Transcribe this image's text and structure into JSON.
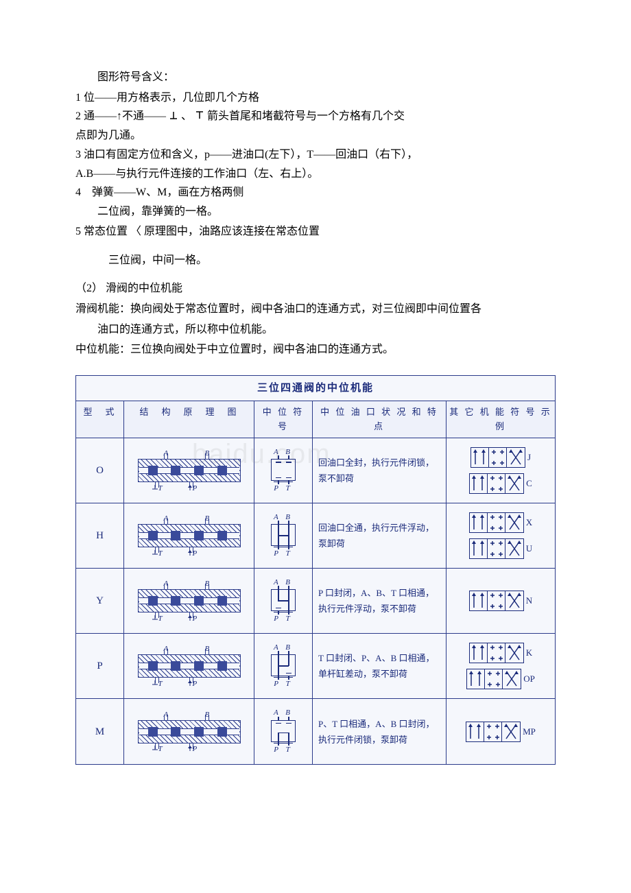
{
  "intro": {
    "heading": "图形符号含义：",
    "item1": "1 位——用方格表示，几位即几个方格",
    "item2a": "2 通——↑不通——",
    "item2b": "、",
    "item2c": "箭头首尾和堵截符号与一个方格有几个交",
    "item2d": "点即为几通。",
    "item3": "3 油口有固定方位和含义，p——进油口(左下），T——回油口（右下），",
    "item3b": "A.B——与执行元件连接的工作油口（左、右上）。",
    "item4": "4　弹簧——W、M，画在方格两侧",
    "item4b": "二位阀，靠弹簧的一格。",
    "item5": "5 常态位置 〈 原理图中，油路应该连接在常态位置",
    "item5b": "三位阀，中间一格。"
  },
  "section2": {
    "heading": "（2） 滑阀的中位机能",
    "line1": "滑阀机能：换向阀处于常态位置时，阀中各油口的连通方式，对三位阀即中间位置各",
    "line1b": "油口的连通方式，所以称中位机能。",
    "line2": "中位机能：三位换向阀处于中立位置时，阀中各油口的连通方式。"
  },
  "table": {
    "title": "三位四通阀的中位机能",
    "headers": {
      "type": "型　式",
      "struct": "结　构　原　理　图",
      "symbol": "中 位 符 号",
      "desc": "中 位 油 口 状 况 和 特 点",
      "other": "其 它 机 能 符 号 示 例"
    },
    "rows": [
      {
        "type": "O",
        "desc": "回油口全封，执行元件闭锁，泵不卸荷",
        "others": [
          "J",
          "C"
        ]
      },
      {
        "type": "H",
        "desc": "回油口全通，执行元件浮动，泵卸荷",
        "others": [
          "X",
          "U"
        ]
      },
      {
        "type": "Y",
        "desc": "P 口封闭，A、B、T 口相通，执行元件浮动，泵不卸荷",
        "others": [
          "N"
        ]
      },
      {
        "type": "P",
        "desc": "T 口封闭、P、A、B 口相通，单杆缸差动，泵不卸荷",
        "others": [
          "K",
          "OP"
        ]
      },
      {
        "type": "M",
        "desc": "P、T 口相通，A、B 口封闭，执行元件闭锁，泵卸荷",
        "others": [
          "MP"
        ]
      }
    ],
    "port_labels": {
      "A": "A",
      "B": "B",
      "P": "P",
      "T": "T",
      "AB": "A B",
      "PT": "P T"
    }
  },
  "watermark": "baidu.com"
}
